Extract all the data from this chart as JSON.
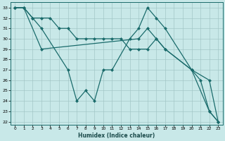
{
  "xlabel": "Humidex (Indice chaleur)",
  "bg_color": "#c8e8e8",
  "grid_color": "#a0c4c4",
  "line_color": "#1a6b6b",
  "xlim": [
    -0.5,
    23.5
  ],
  "ylim": [
    21.7,
    33.5
  ],
  "xticks": [
    0,
    1,
    2,
    3,
    4,
    5,
    6,
    7,
    8,
    9,
    10,
    11,
    12,
    13,
    14,
    15,
    16,
    17,
    18,
    19,
    20,
    21,
    22,
    23
  ],
  "yticks": [
    22,
    23,
    24,
    25,
    26,
    27,
    28,
    29,
    30,
    31,
    32,
    33
  ],
  "line1_x": [
    0,
    1,
    2,
    3,
    4,
    5,
    6,
    7,
    8,
    9,
    10,
    11,
    12,
    13,
    14,
    15,
    16,
    17,
    20,
    22,
    23
  ],
  "line1_y": [
    33,
    33,
    32,
    32,
    32,
    31,
    31,
    30,
    30,
    30,
    30,
    30,
    30,
    29,
    29,
    29,
    30,
    29,
    27,
    26,
    22
  ],
  "line2_x": [
    0,
    1,
    2,
    3,
    6,
    7,
    8,
    9,
    10,
    11,
    13,
    14,
    15,
    16,
    17,
    20,
    21,
    22,
    23
  ],
  "line2_y": [
    33,
    33,
    32,
    31,
    27,
    24,
    25,
    24,
    27,
    27,
    30,
    31,
    33,
    32,
    31,
    27,
    26,
    23,
    22
  ],
  "line3_x": [
    0,
    1,
    3,
    14,
    15,
    16,
    17,
    20,
    22,
    23
  ],
  "line3_y": [
    33,
    33,
    29,
    30,
    31,
    30,
    29,
    27,
    23,
    22
  ]
}
